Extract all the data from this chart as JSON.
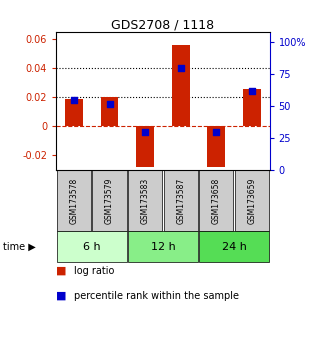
{
  "title": "GDS2708 / 1118",
  "samples": [
    "GSM173578",
    "GSM173579",
    "GSM173583",
    "GSM173587",
    "GSM173658",
    "GSM173659"
  ],
  "log_ratios": [
    0.019,
    0.02,
    -0.028,
    0.056,
    -0.028,
    0.026
  ],
  "percentile_ranks": [
    55,
    52,
    30,
    80,
    30,
    62
  ],
  "time_groups": [
    {
      "label": "6 h",
      "samples": [
        0,
        1
      ],
      "color": "#ccffcc"
    },
    {
      "label": "12 h",
      "samples": [
        2,
        3
      ],
      "color": "#88ee88"
    },
    {
      "label": "24 h",
      "samples": [
        4,
        5
      ],
      "color": "#55dd55"
    }
  ],
  "bar_color": "#cc2200",
  "dot_color": "#0000cc",
  "ylim_left": [
    -0.03,
    0.065
  ],
  "ylim_right": [
    0,
    108.33
  ],
  "yticks_left": [
    -0.02,
    0,
    0.02,
    0.04,
    0.06
  ],
  "yticks_right": [
    0,
    25,
    50,
    75,
    100
  ],
  "ytick_labels_right": [
    "0",
    "25",
    "50",
    "75",
    "100%"
  ],
  "hline_dashed_red": 0,
  "hlines_dotted_black": [
    0.02,
    0.04
  ],
  "sample_box_color": "#cccccc",
  "time_colors": [
    "#ccffcc",
    "#88ee88",
    "#55dd55"
  ],
  "legend_bar_label": "log ratio",
  "legend_dot_label": "percentile rank within the sample",
  "bar_width": 0.5
}
